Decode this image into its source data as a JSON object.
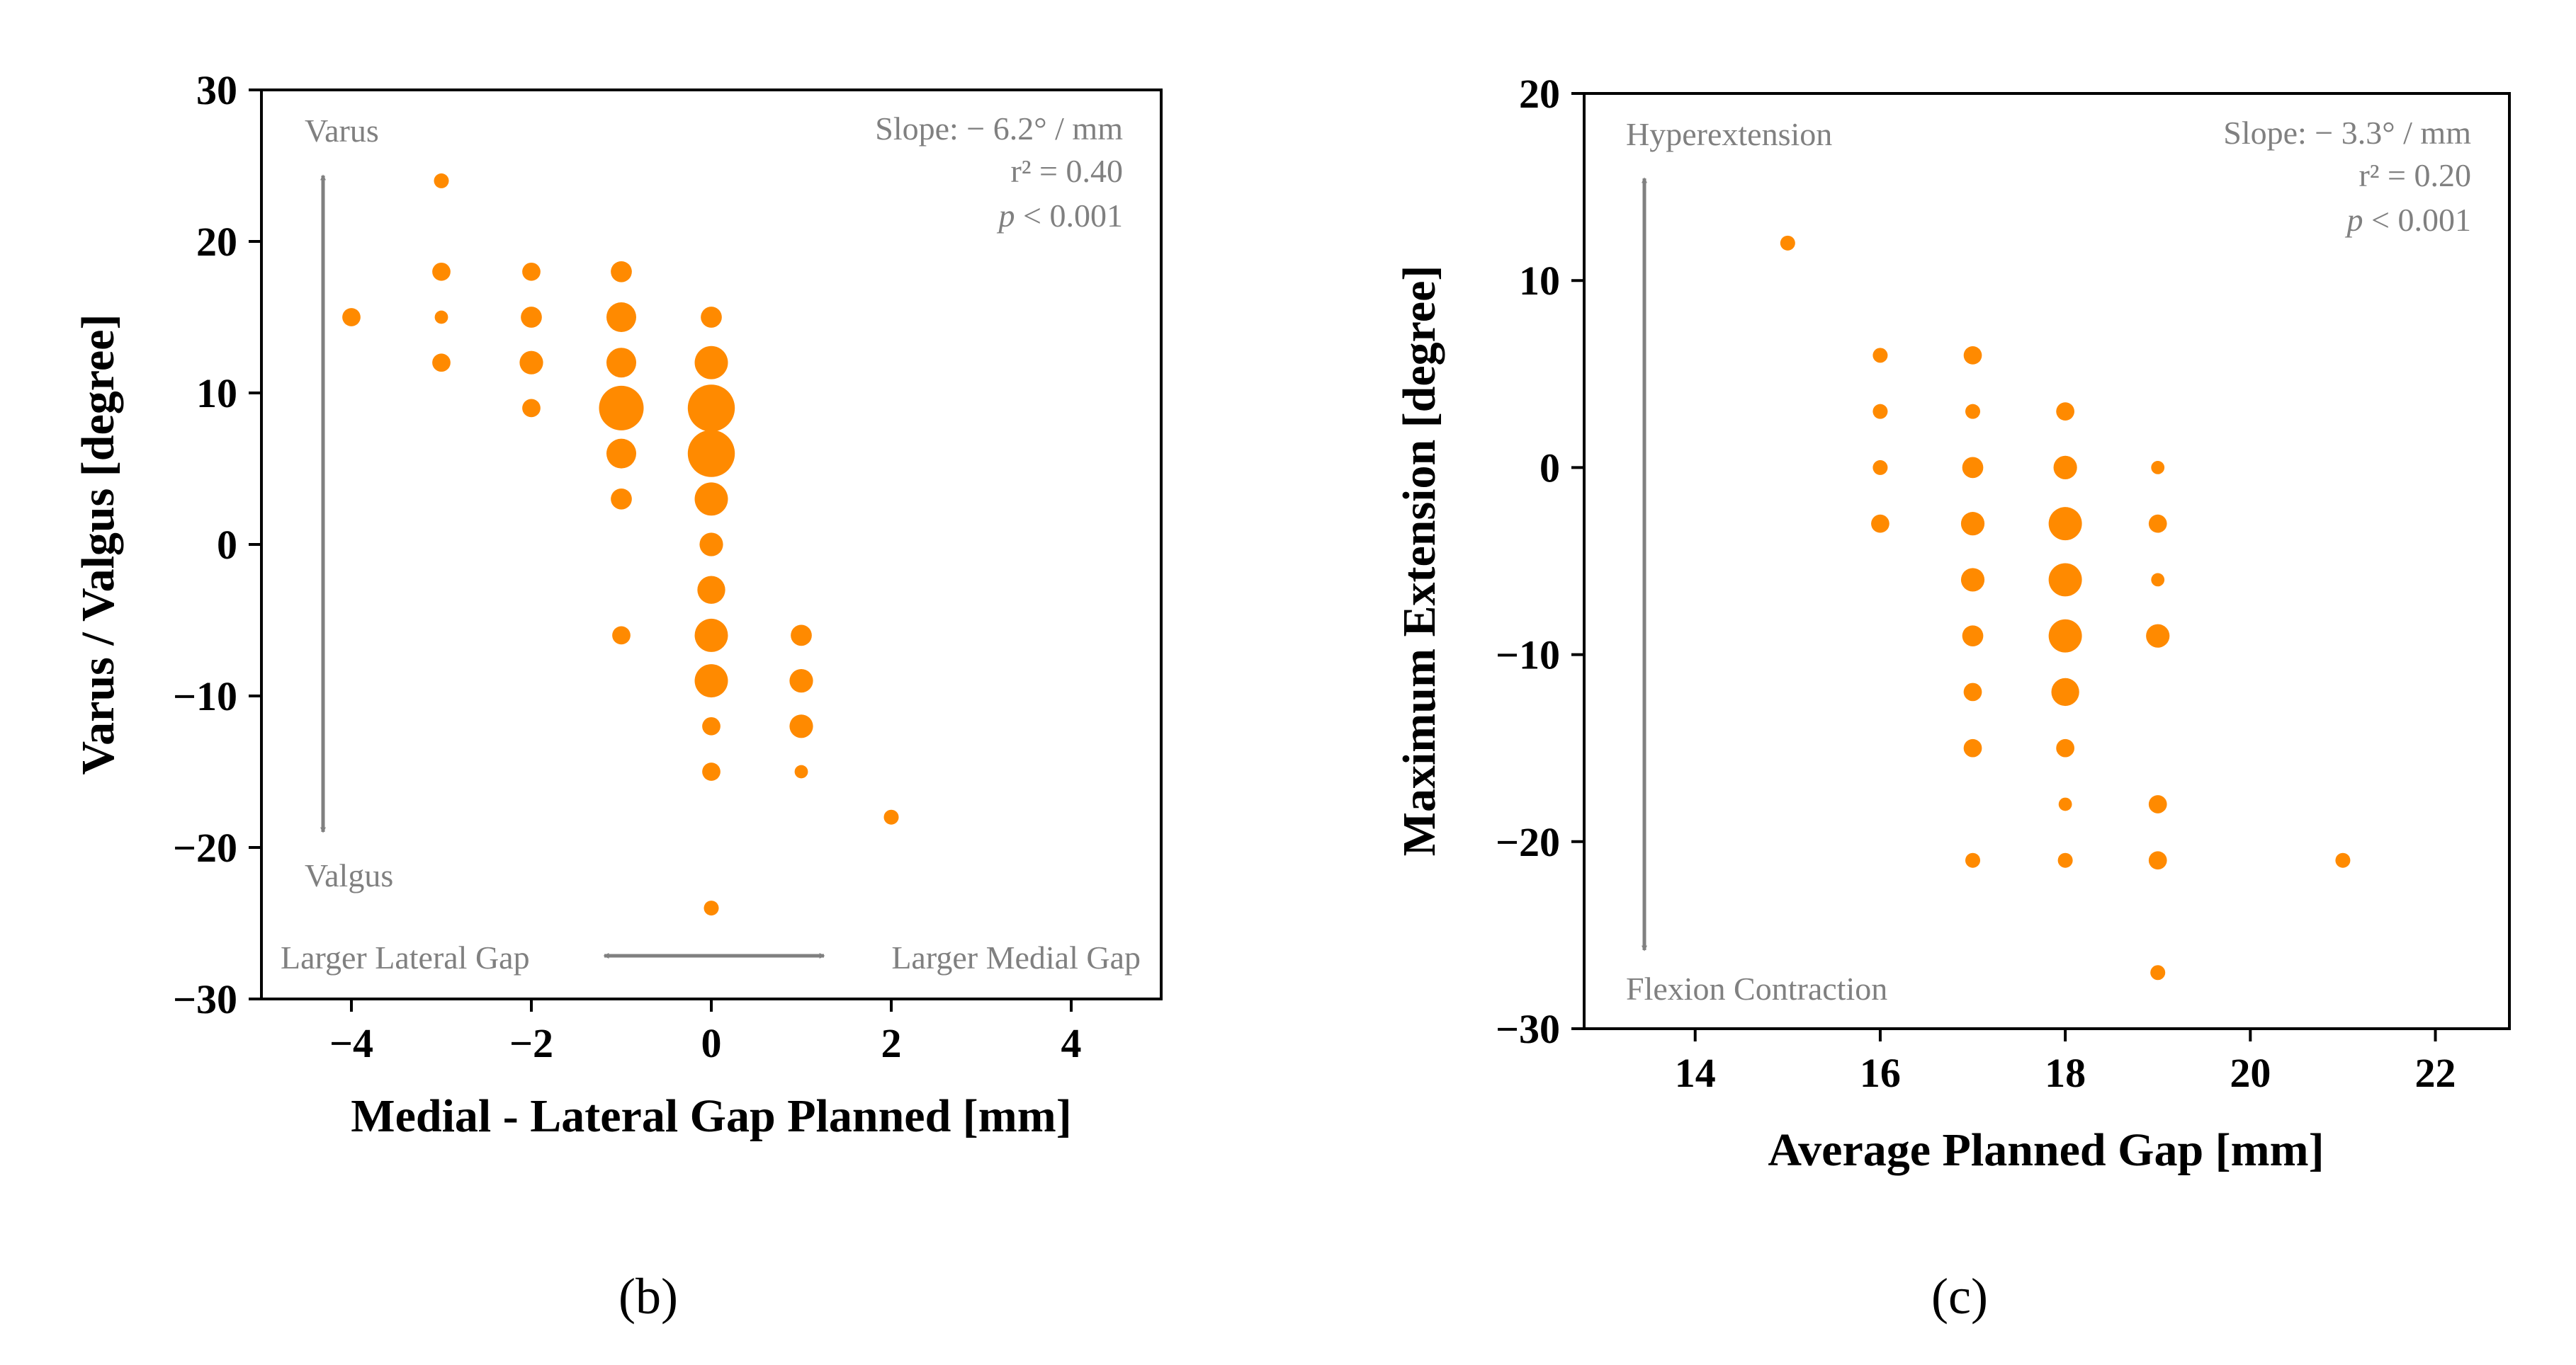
{
  "chart_data": [
    {
      "type": "scatter",
      "panel_label": "(b)",
      "xlabel": "Medial - Lateral Gap Planned [mm]",
      "ylabel": "Varus / Valgus [degree]",
      "xlim": [
        -5,
        5
      ],
      "ylim": [
        -30,
        30
      ],
      "xticks": [
        -4,
        -2,
        0,
        2,
        4
      ],
      "yticks": [
        -30,
        -20,
        -10,
        0,
        10,
        20,
        30
      ],
      "xtick_labels": [
        "−4",
        "−2",
        "0",
        "2",
        "4"
      ],
      "ytick_labels": [
        "−30",
        "−20",
        "−10",
        "0",
        "10",
        "20",
        "30"
      ],
      "marker_color": "#ff8a00",
      "arrow_color": "#808080",
      "stats": {
        "slope": "Slope: − 6.2° / mm",
        "r2": "r² = 0.40",
        "p_symbol": "p",
        "p_value": " < 0.001"
      },
      "annotations": {
        "top": "Varus",
        "bottom": "Valgus",
        "left": "Larger Lateral Gap",
        "right": "Larger Medial Gap"
      },
      "points": [
        {
          "x": -4,
          "y": 15,
          "n": 1.5
        },
        {
          "x": -3,
          "y": 24,
          "n": 1
        },
        {
          "x": -3,
          "y": 18,
          "n": 1.5
        },
        {
          "x": -3,
          "y": 15,
          "n": 0.8
        },
        {
          "x": -3,
          "y": 12,
          "n": 1.5
        },
        {
          "x": -2,
          "y": 18,
          "n": 1.5
        },
        {
          "x": -2,
          "y": 15,
          "n": 2
        },
        {
          "x": -2,
          "y": 12,
          "n": 2.5
        },
        {
          "x": -2,
          "y": 9,
          "n": 1.5
        },
        {
          "x": -1,
          "y": 18,
          "n": 2
        },
        {
          "x": -1,
          "y": 15,
          "n": 4
        },
        {
          "x": -1,
          "y": 12,
          "n": 4
        },
        {
          "x": -1,
          "y": 9,
          "n": 9
        },
        {
          "x": -1,
          "y": 6,
          "n": 4
        },
        {
          "x": -1,
          "y": 3,
          "n": 2
        },
        {
          "x": -1,
          "y": -6,
          "n": 1.5
        },
        {
          "x": 0,
          "y": 15,
          "n": 2
        },
        {
          "x": 0,
          "y": 12,
          "n": 5
        },
        {
          "x": 0,
          "y": 9,
          "n": 10
        },
        {
          "x": 0,
          "y": 6,
          "n": 10
        },
        {
          "x": 0,
          "y": 3,
          "n": 5
        },
        {
          "x": 0,
          "y": 0,
          "n": 2.5
        },
        {
          "x": 0,
          "y": -3,
          "n": 3.5
        },
        {
          "x": 0,
          "y": -6,
          "n": 5
        },
        {
          "x": 0,
          "y": -9,
          "n": 5
        },
        {
          "x": 0,
          "y": -12,
          "n": 1.5
        },
        {
          "x": 0,
          "y": -15,
          "n": 1.5
        },
        {
          "x": 0,
          "y": -24,
          "n": 1
        },
        {
          "x": 1,
          "y": -6,
          "n": 2
        },
        {
          "x": 1,
          "y": -9,
          "n": 2.5
        },
        {
          "x": 1,
          "y": -12,
          "n": 2.5
        },
        {
          "x": 1,
          "y": -15,
          "n": 0.8
        },
        {
          "x": 2,
          "y": -18,
          "n": 1
        }
      ]
    },
    {
      "type": "scatter",
      "panel_label": "(c)",
      "xlabel": "Average Planned Gap [mm]",
      "ylabel": "Maximum Extension [degree]",
      "xlim": [
        12.8,
        22.8
      ],
      "ylim": [
        -30,
        20
      ],
      "xticks": [
        14,
        16,
        18,
        20,
        22
      ],
      "yticks": [
        -30,
        -20,
        -10,
        0,
        10,
        20
      ],
      "xtick_labels": [
        "14",
        "16",
        "18",
        "20",
        "22"
      ],
      "ytick_labels": [
        "−30",
        "−20",
        "−10",
        "0",
        "10",
        "20"
      ],
      "marker_color": "#ff8a00",
      "arrow_color": "#808080",
      "stats": {
        "slope": "Slope: − 3.3° / mm",
        "r2": "r² = 0.20",
        "p_symbol": "p",
        "p_value": " < 0.001"
      },
      "annotations": {
        "top": "Hyperextension",
        "bottom": "Flexion Contraction"
      },
      "points": [
        {
          "x": 15,
          "y": 12,
          "n": 1
        },
        {
          "x": 16,
          "y": 6,
          "n": 1
        },
        {
          "x": 16,
          "y": 3,
          "n": 1
        },
        {
          "x": 16,
          "y": 0,
          "n": 1
        },
        {
          "x": 16,
          "y": -3,
          "n": 1.5
        },
        {
          "x": 17,
          "y": 6,
          "n": 1.5
        },
        {
          "x": 17,
          "y": 3,
          "n": 1
        },
        {
          "x": 17,
          "y": 0,
          "n": 2
        },
        {
          "x": 17,
          "y": -3,
          "n": 2.5
        },
        {
          "x": 17,
          "y": -6,
          "n": 2.5
        },
        {
          "x": 17,
          "y": -9,
          "n": 2
        },
        {
          "x": 17,
          "y": -12,
          "n": 1.5
        },
        {
          "x": 17,
          "y": -15,
          "n": 1.5
        },
        {
          "x": 17,
          "y": -21,
          "n": 1
        },
        {
          "x": 18,
          "y": 3,
          "n": 1.5
        },
        {
          "x": 18,
          "y": 0,
          "n": 2.5
        },
        {
          "x": 18,
          "y": -3,
          "n": 5
        },
        {
          "x": 18,
          "y": -6,
          "n": 5
        },
        {
          "x": 18,
          "y": -9,
          "n": 5
        },
        {
          "x": 18,
          "y": -12,
          "n": 3.5
        },
        {
          "x": 18,
          "y": -15,
          "n": 1.5
        },
        {
          "x": 18,
          "y": -18,
          "n": 0.8
        },
        {
          "x": 18,
          "y": -21,
          "n": 1
        },
        {
          "x": 19,
          "y": 0,
          "n": 0.8
        },
        {
          "x": 19,
          "y": -3,
          "n": 1.5
        },
        {
          "x": 19,
          "y": -6,
          "n": 0.8
        },
        {
          "x": 19,
          "y": -9,
          "n": 2.5
        },
        {
          "x": 19,
          "y": -18,
          "n": 1.5
        },
        {
          "x": 19,
          "y": -21,
          "n": 1.5
        },
        {
          "x": 19,
          "y": -27,
          "n": 1
        },
        {
          "x": 21,
          "y": -21,
          "n": 1
        }
      ]
    }
  ]
}
